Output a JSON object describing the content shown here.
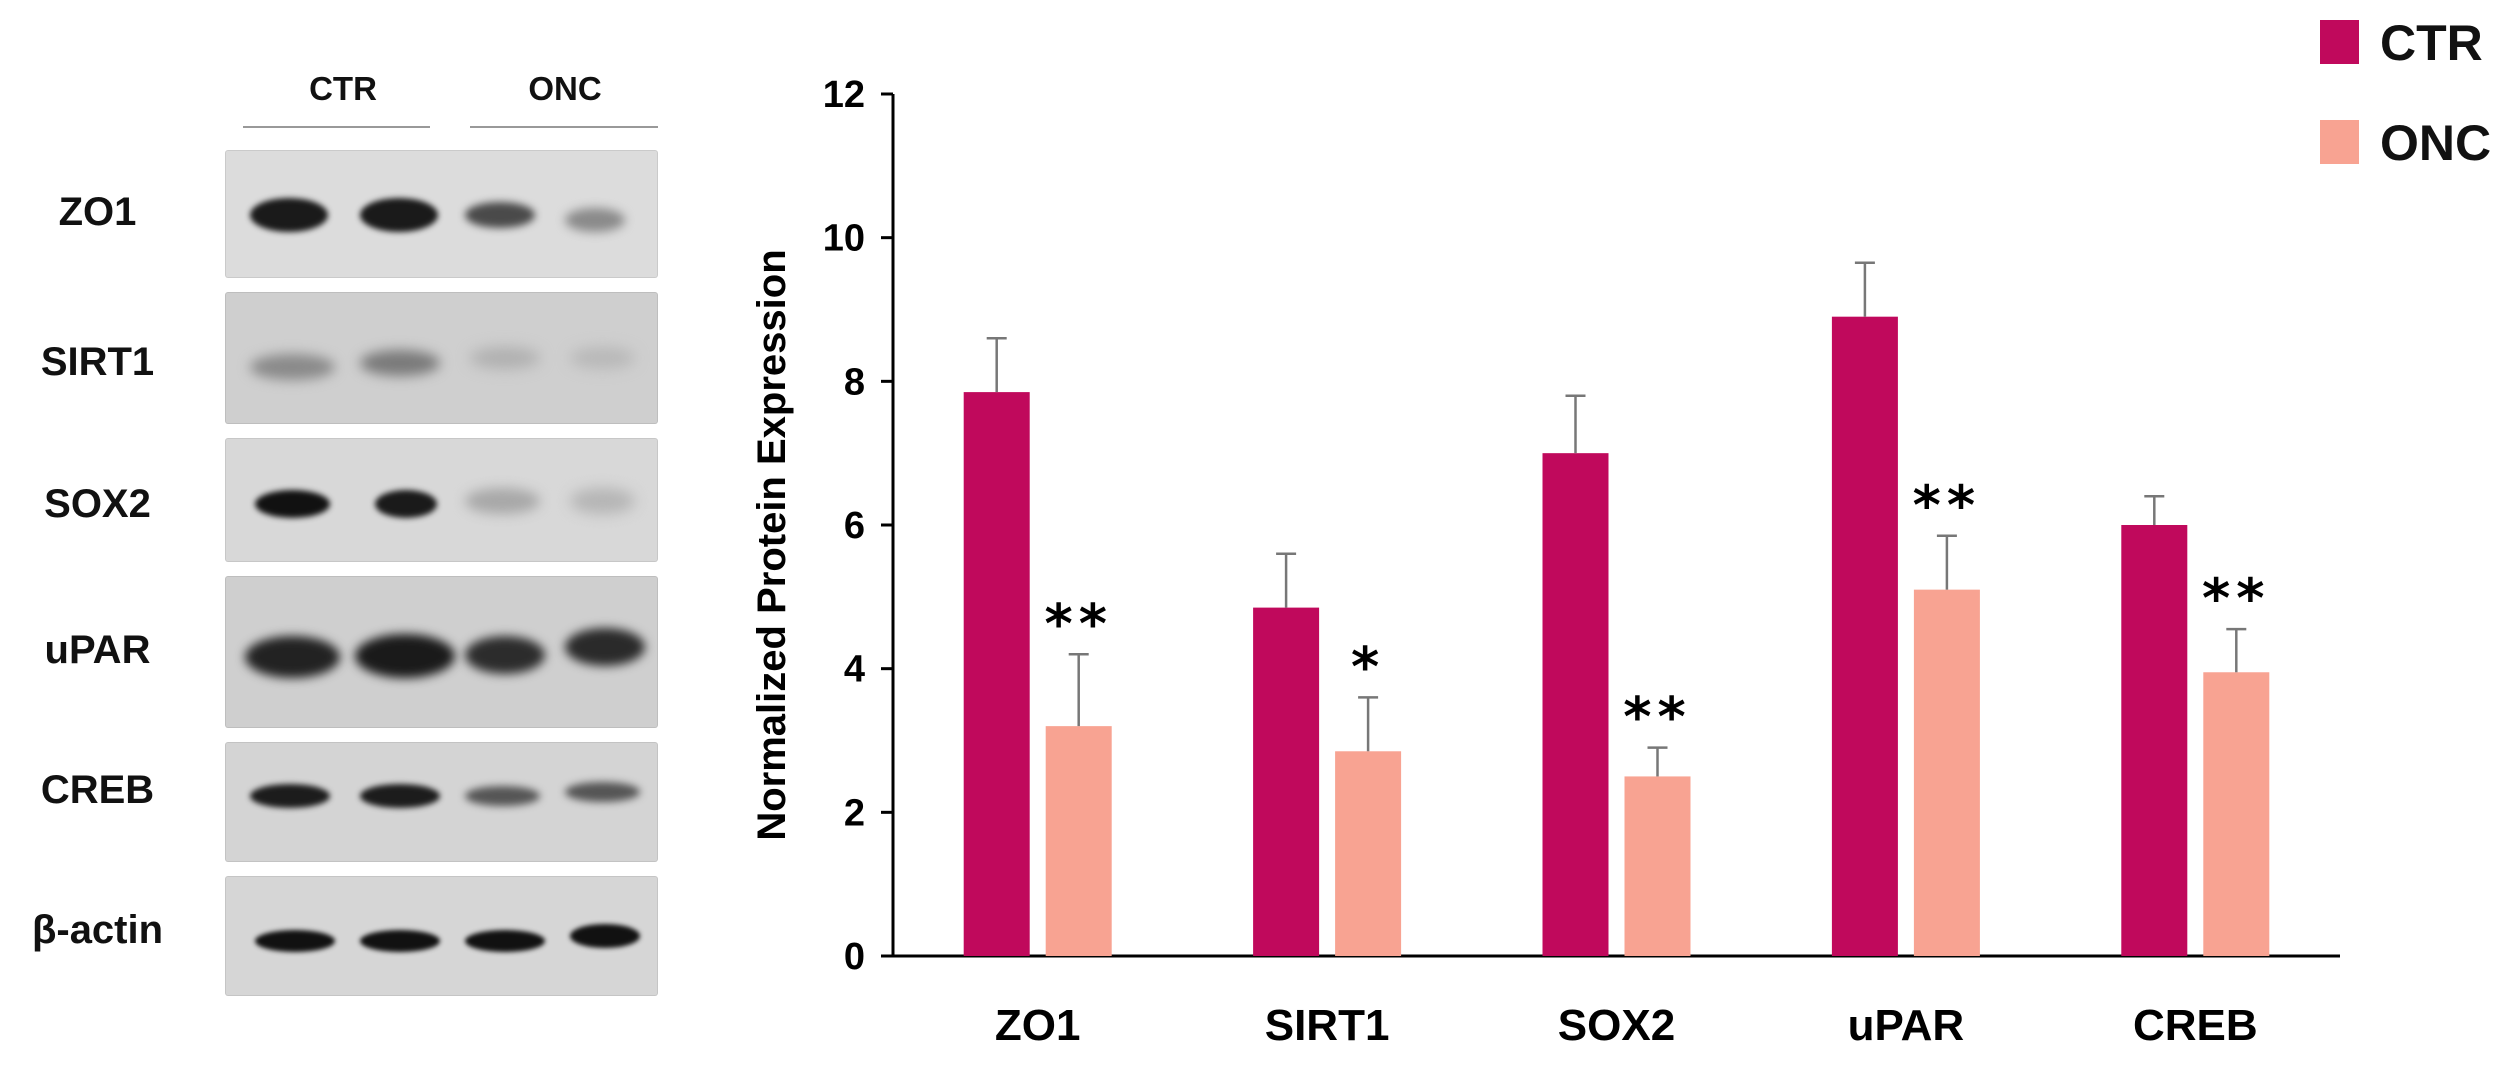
{
  "blot": {
    "header_ctr": "CTR",
    "header_onc": "ONC",
    "rows": [
      {
        "label": "ZO1"
      },
      {
        "label": "SIRT1"
      },
      {
        "label": "SOX2"
      },
      {
        "label": "uPAR"
      },
      {
        "label": "CREB"
      },
      {
        "label": "β-actin"
      }
    ]
  },
  "chart_data": {
    "type": "bar",
    "title": "",
    "xlabel": "",
    "ylabel": "Normalized Protein Expression",
    "ylim": [
      0,
      12
    ],
    "yticks": [
      0,
      2,
      4,
      6,
      8,
      10,
      12
    ],
    "grid": false,
    "legend_position": "top-right",
    "categories": [
      "ZO1",
      "SIRT1",
      "SOX2",
      "uPAR",
      "CREB"
    ],
    "series": [
      {
        "name": "CTR",
        "color": "#c0095c",
        "values": [
          7.85,
          4.85,
          7.0,
          8.9,
          6.0
        ],
        "errors": [
          0.75,
          0.75,
          0.8,
          0.75,
          0.4
        ],
        "significance": [
          "",
          "",
          "",
          "",
          ""
        ]
      },
      {
        "name": "ONC",
        "color": "#f8a392",
        "values": [
          3.2,
          2.85,
          2.5,
          5.1,
          3.95
        ],
        "errors": [
          1.0,
          0.75,
          0.4,
          0.75,
          0.6
        ],
        "significance": [
          "**",
          "*",
          "**",
          "**",
          "**"
        ]
      }
    ]
  }
}
